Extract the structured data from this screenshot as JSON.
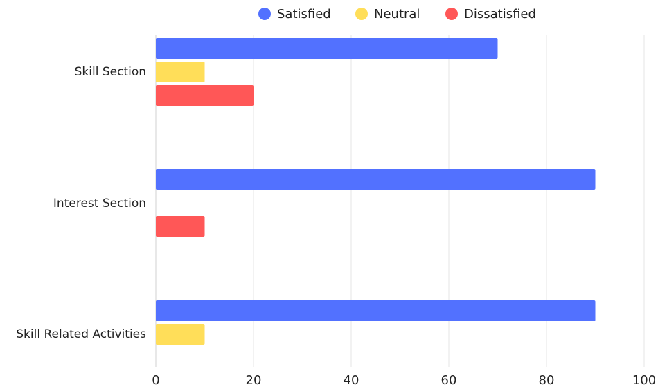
{
  "chart_data": {
    "type": "bar",
    "orientation": "horizontal",
    "categories": [
      "Skill Section",
      "Interest Section",
      "Skill Related Activities"
    ],
    "series": [
      {
        "name": "Satisfied",
        "color": "#5271ff",
        "values": [
          70,
          90,
          90
        ]
      },
      {
        "name": "Neutral",
        "color": "#ffde59",
        "values": [
          10,
          0,
          10
        ]
      },
      {
        "name": "Dissatisfied",
        "color": "#ff5757",
        "values": [
          20,
          10,
          0
        ]
      }
    ],
    "xlim": [
      0,
      100
    ],
    "xticks": [
      "0",
      "20",
      "40",
      "60",
      "80",
      "100"
    ],
    "grid": true,
    "legend_position": "top"
  }
}
